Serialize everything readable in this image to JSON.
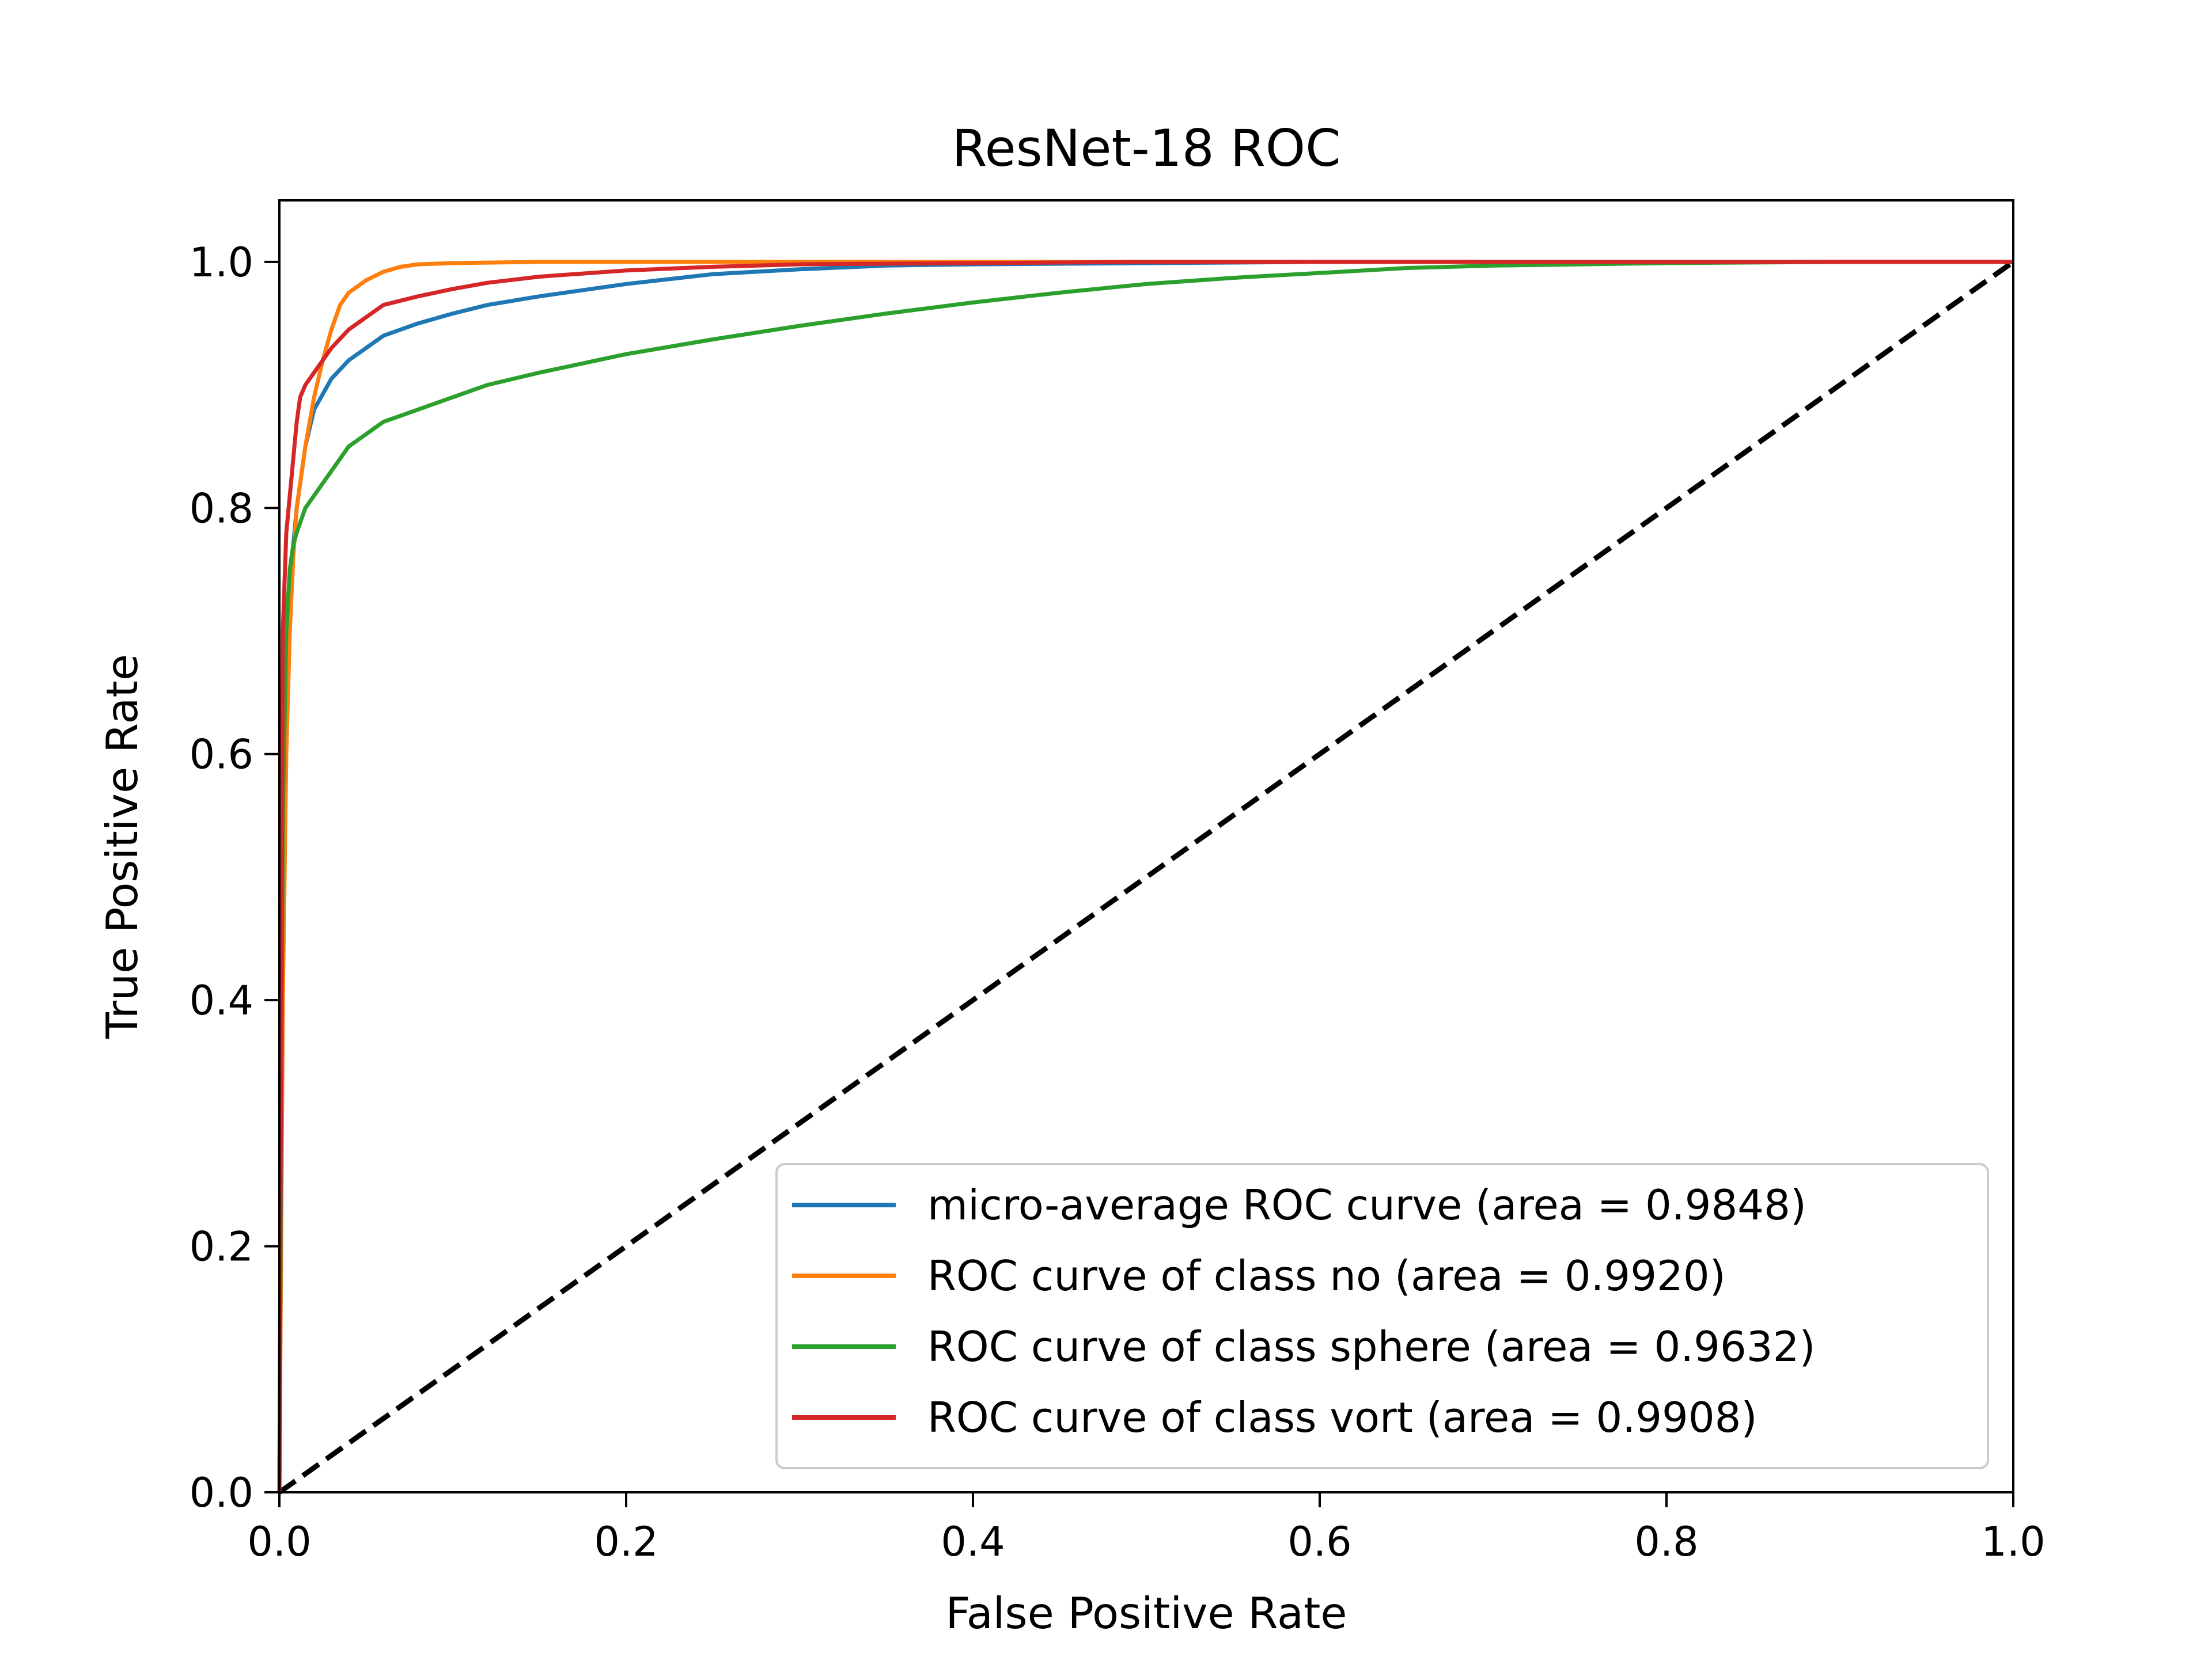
{
  "chart_data": {
    "type": "line",
    "title": "ResNet-18 ROC",
    "xlabel": "False Positive Rate",
    "ylabel": "True Positive Rate",
    "xlim": [
      0.0,
      1.0
    ],
    "ylim": [
      0.0,
      1.05
    ],
    "xticks": [
      "0.0",
      "0.2",
      "0.4",
      "0.6",
      "0.8",
      "1.0"
    ],
    "yticks": [
      "0.0",
      "0.2",
      "0.4",
      "0.6",
      "0.8",
      "1.0"
    ],
    "grid": false,
    "legend_position": "lower-right",
    "series": [
      {
        "name": "micro-average ROC curve (area = 0.9848)",
        "color": "#1f77b4",
        "x": [
          0.0,
          0.002,
          0.004,
          0.006,
          0.008,
          0.01,
          0.015,
          0.02,
          0.03,
          0.04,
          0.05,
          0.06,
          0.08,
          0.1,
          0.12,
          0.15,
          0.2,
          0.25,
          0.3,
          0.35,
          0.4,
          0.5,
          0.6,
          0.7,
          0.8,
          0.9,
          1.0
        ],
        "y": [
          0.0,
          0.45,
          0.62,
          0.72,
          0.77,
          0.8,
          0.85,
          0.88,
          0.905,
          0.92,
          0.93,
          0.94,
          0.95,
          0.958,
          0.965,
          0.972,
          0.982,
          0.99,
          0.994,
          0.997,
          0.998,
          0.999,
          1.0,
          1.0,
          1.0,
          1.0,
          1.0
        ]
      },
      {
        "name": "ROC curve of class no (area = 0.9920)",
        "color": "#ff7f0e",
        "x": [
          0.0,
          0.002,
          0.004,
          0.006,
          0.008,
          0.01,
          0.015,
          0.02,
          0.025,
          0.03,
          0.035,
          0.04,
          0.05,
          0.06,
          0.07,
          0.08,
          0.1,
          0.15,
          0.2,
          0.3,
          0.5,
          0.7,
          1.0
        ],
        "y": [
          0.0,
          0.4,
          0.6,
          0.7,
          0.76,
          0.8,
          0.85,
          0.89,
          0.92,
          0.945,
          0.965,
          0.975,
          0.985,
          0.992,
          0.996,
          0.998,
          0.999,
          1.0,
          1.0,
          1.0,
          1.0,
          1.0,
          1.0
        ]
      },
      {
        "name": "ROC curve of class sphere (area = 0.9632)",
        "color": "#2ca02c",
        "x": [
          0.0,
          0.002,
          0.004,
          0.006,
          0.008,
          0.01,
          0.015,
          0.02,
          0.03,
          0.04,
          0.05,
          0.06,
          0.08,
          0.1,
          0.12,
          0.15,
          0.2,
          0.25,
          0.3,
          0.35,
          0.4,
          0.45,
          0.5,
          0.55,
          0.6,
          0.65,
          0.7,
          0.8,
          0.9,
          1.0
        ],
        "y": [
          0.0,
          0.55,
          0.7,
          0.75,
          0.77,
          0.78,
          0.8,
          0.81,
          0.83,
          0.85,
          0.86,
          0.87,
          0.88,
          0.89,
          0.9,
          0.91,
          0.925,
          0.937,
          0.948,
          0.958,
          0.967,
          0.975,
          0.982,
          0.987,
          0.991,
          0.995,
          0.997,
          0.999,
          1.0,
          1.0
        ]
      },
      {
        "name": "ROC curve of class vort (area = 0.9908)",
        "color": "#d62728",
        "x": [
          0.0,
          0.002,
          0.004,
          0.006,
          0.008,
          0.01,
          0.012,
          0.015,
          0.02,
          0.03,
          0.04,
          0.05,
          0.06,
          0.08,
          0.1,
          0.12,
          0.15,
          0.2,
          0.25,
          0.3,
          0.4,
          0.5,
          0.7,
          1.0
        ],
        "y": [
          0.0,
          0.7,
          0.78,
          0.81,
          0.84,
          0.87,
          0.89,
          0.9,
          0.91,
          0.93,
          0.945,
          0.955,
          0.965,
          0.972,
          0.978,
          0.983,
          0.988,
          0.993,
          0.996,
          0.998,
          0.999,
          1.0,
          1.0,
          1.0
        ]
      },
      {
        "name": "",
        "color": "#000000",
        "dashed": true,
        "x": [
          0.0,
          1.0
        ],
        "y": [
          0.0,
          1.0
        ]
      }
    ]
  }
}
